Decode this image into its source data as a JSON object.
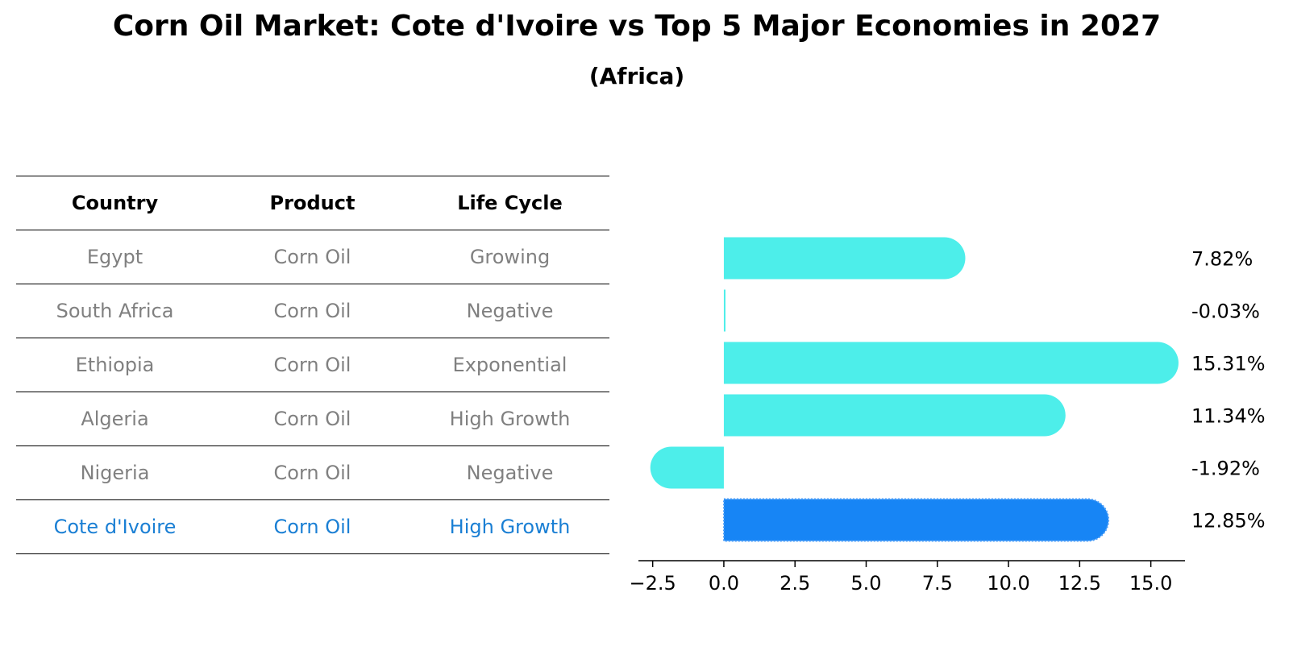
{
  "title": "Corn Oil Market: Cote d'Ivoire vs Top 5 Major Economies in 2027",
  "subtitle": "(Africa)",
  "table": {
    "headers": [
      "Country",
      "Product",
      "Life Cycle"
    ],
    "rows": [
      {
        "country": "Egypt",
        "product": "Corn Oil",
        "life_cycle": "Growing"
      },
      {
        "country": "South Africa",
        "product": "Corn Oil",
        "life_cycle": "Negative"
      },
      {
        "country": "Ethiopia",
        "product": "Corn Oil",
        "life_cycle": "Exponential"
      },
      {
        "country": "Algeria",
        "product": "Corn Oil",
        "life_cycle": "High Growth"
      },
      {
        "country": "Nigeria",
        "product": "Corn Oil",
        "life_cycle": "Negative"
      },
      {
        "country": "Cote d'Ivoire",
        "product": "Corn Oil",
        "life_cycle": "High Growth"
      }
    ]
  },
  "colors": {
    "bar": "#4deeea",
    "highlight_bar": "#1785f5",
    "highlight_text": "#1a7fd4",
    "row_text": "#808080"
  },
  "chart_data": {
    "type": "bar",
    "orientation": "horizontal",
    "categories": [
      "Egypt",
      "South Africa",
      "Ethiopia",
      "Algeria",
      "Nigeria",
      "Cote d'Ivoire"
    ],
    "values": [
      7.82,
      -0.03,
      15.31,
      11.34,
      -1.92,
      12.85
    ],
    "value_labels": [
      "7.82%",
      "-0.03%",
      "15.31%",
      "11.34%",
      "-1.92%",
      "12.85%"
    ],
    "highlight_index": 5,
    "xlim": [
      -3.0,
      16.2
    ],
    "xticks": [
      -2.5,
      0.0,
      2.5,
      5.0,
      7.5,
      10.0,
      12.5,
      15.0
    ],
    "xtick_labels": [
      "−2.5",
      "0.0",
      "2.5",
      "5.0",
      "7.5",
      "10.0",
      "12.5",
      "15.0"
    ],
    "title": "",
    "xlabel": "",
    "ylabel": ""
  }
}
